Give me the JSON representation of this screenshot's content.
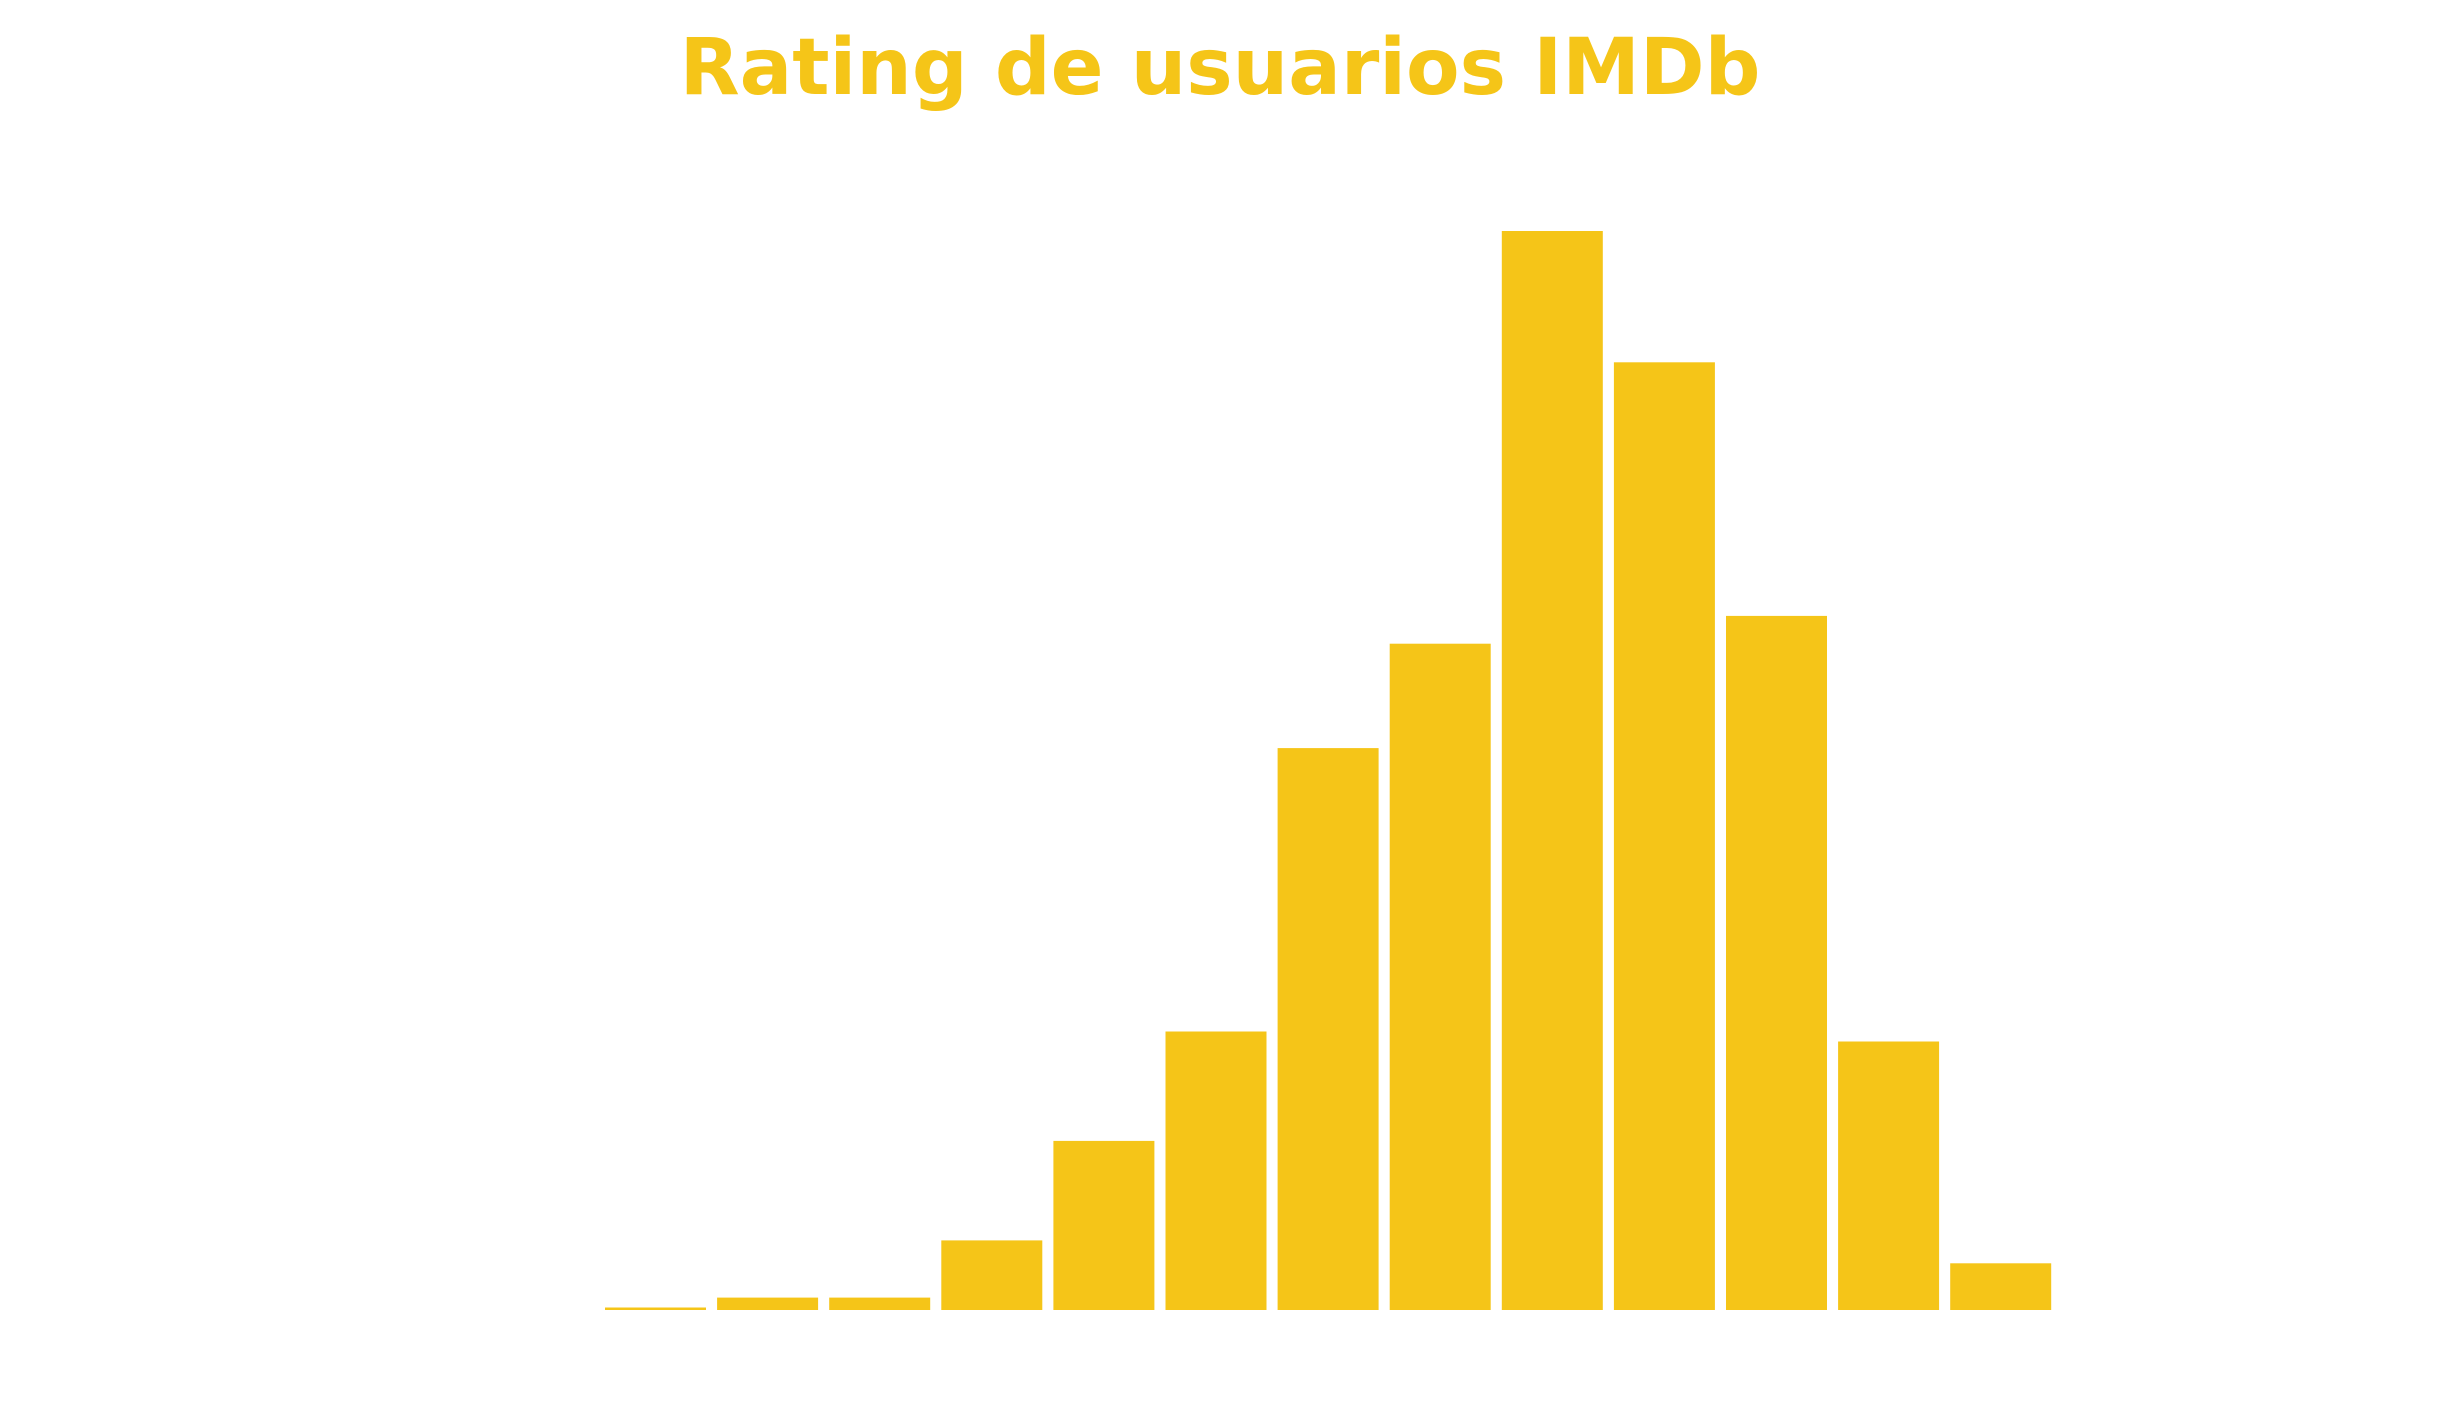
{
  "chart_data": {
    "type": "bar",
    "title": "Rating de usuarios IMDb",
    "xlabel": "",
    "ylabel": "",
    "values": [
      0.25,
      1.25,
      1.25,
      7,
      17,
      28,
      56.5,
      67,
      108.5,
      95.3,
      69.8,
      27,
      4.7
    ],
    "ylim": [
      0,
      108.5
    ],
    "axes_visible": false,
    "grid": false,
    "bar_color": "#F5C518"
  }
}
